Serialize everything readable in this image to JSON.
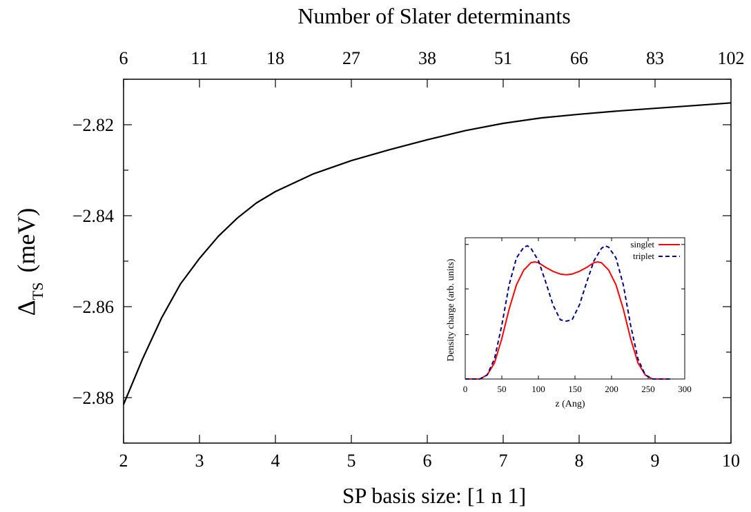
{
  "chart_data": [
    {
      "type": "line",
      "title": "",
      "xlabel": "SP basis size: [1 n 1]",
      "x2label": "Number of Slater determinants",
      "ylabel_main": "Δ",
      "ylabel_sub": "TS",
      "ylabel_unit": "(meV)",
      "xlim": [
        2,
        10
      ],
      "ylim": [
        -2.89,
        -2.81
      ],
      "grid": false,
      "x_ticks": [
        "2",
        "3",
        "4",
        "5",
        "6",
        "7",
        "8",
        "9",
        "10"
      ],
      "x_tick_values": [
        2,
        3,
        4,
        5,
        6,
        7,
        8,
        9,
        10
      ],
      "x2_ticks": [
        "6",
        "11",
        "18",
        "27",
        "38",
        "51",
        "66",
        "83",
        "102"
      ],
      "x2_tick_values": [
        2,
        3,
        4,
        5,
        6,
        7,
        8,
        9,
        10
      ],
      "y_ticks": [
        "−2.88",
        "−2.86",
        "−2.84",
        "−2.82"
      ],
      "y_tick_values": [
        -2.88,
        -2.86,
        -2.84,
        -2.82
      ],
      "y_minor_values": [
        -2.89,
        -2.87,
        -2.85,
        -2.83,
        -2.81
      ],
      "series": [
        {
          "x": [
            2,
            2.25,
            2.5,
            2.75,
            3,
            3.25,
            3.5,
            3.75,
            4,
            4.5,
            5,
            5.5,
            6,
            6.5,
            7,
            7.5,
            8,
            8.5,
            9,
            9.5,
            10
          ],
          "y": [
            -2.8815,
            -2.8715,
            -2.8625,
            -2.855,
            -2.8494,
            -2.8445,
            -2.8405,
            -2.8372,
            -2.8347,
            -2.8308,
            -2.8279,
            -2.8255,
            -2.8233,
            -2.8213,
            -2.8197,
            -2.8185,
            -2.8177,
            -2.817,
            -2.8164,
            -2.8158,
            -2.8152
          ],
          "color": "#000000"
        }
      ]
    },
    {
      "type": "line",
      "title": "",
      "xlabel": "z (Ang)",
      "ylabel": "Density charge (arb. units)",
      "xlim": [
        0,
        300
      ],
      "ylim": [
        0,
        1.05
      ],
      "grid": false,
      "legend": "top-right",
      "x_ticks": [
        "0",
        "50",
        "100",
        "150",
        "200",
        "250",
        "300"
      ],
      "x_tick_values": [
        0,
        50,
        100,
        150,
        200,
        250,
        300
      ],
      "series": [
        {
          "name": "singlet",
          "color": "#ff0000",
          "dash": "solid",
          "x": [
            0,
            20,
            30,
            40,
            50,
            60,
            70,
            80,
            90,
            95,
            100,
            110,
            120,
            130,
            138,
            146,
            156,
            166,
            176,
            181,
            186,
            196,
            206,
            216,
            226,
            236,
            246,
            256,
            270,
            280
          ],
          "y": [
            0,
            0,
            0.03,
            0.12,
            0.3,
            0.52,
            0.7,
            0.81,
            0.865,
            0.87,
            0.865,
            0.83,
            0.8,
            0.78,
            0.775,
            0.78,
            0.8,
            0.83,
            0.865,
            0.87,
            0.865,
            0.81,
            0.7,
            0.52,
            0.3,
            0.12,
            0.03,
            0,
            0,
            0
          ]
        },
        {
          "name": "triplet",
          "color": "#00008b",
          "dash": "dashed",
          "x": [
            0,
            20,
            30,
            40,
            50,
            60,
            70,
            80,
            85,
            90,
            100,
            110,
            120,
            130,
            138,
            146,
            156,
            166,
            176,
            186,
            191,
            196,
            206,
            216,
            226,
            236,
            246,
            256,
            270,
            280
          ],
          "y": [
            0,
            0,
            0.03,
            0.15,
            0.4,
            0.7,
            0.9,
            0.98,
            0.99,
            0.97,
            0.88,
            0.72,
            0.55,
            0.44,
            0.43,
            0.44,
            0.55,
            0.72,
            0.88,
            0.97,
            0.99,
            0.98,
            0.9,
            0.7,
            0.4,
            0.15,
            0.03,
            0,
            0,
            0
          ]
        }
      ]
    }
  ]
}
